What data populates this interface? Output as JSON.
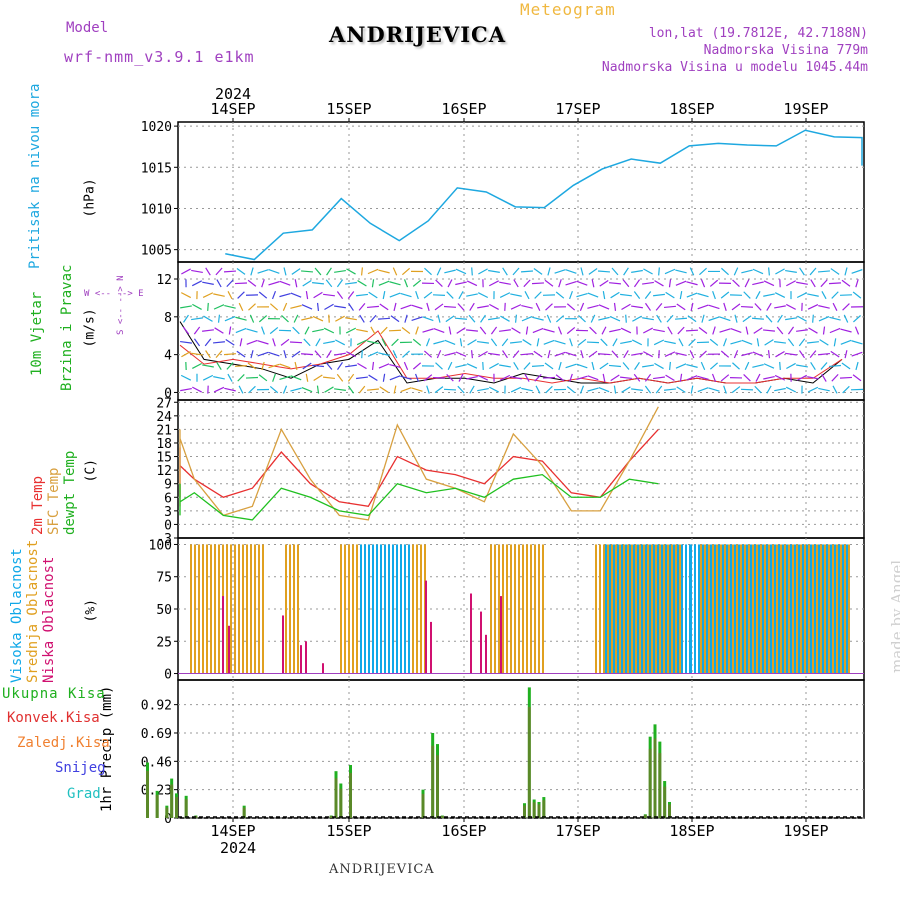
{
  "header": {
    "model_label": "Model",
    "model_run": "wrf-nmm_v3.9.1 e1km",
    "location": "ANDRIJEVICA",
    "product": "Meteogram",
    "lonlat": "lon,lat (19.7812E, 42.7188N)",
    "elevation": "Nadmorska Visina 779m",
    "model_elevation": "Nadmorska Visina u modelu 1045.44m"
  },
  "footer": {
    "location": "ANDRIJEVICA",
    "credit": "made by Angel"
  },
  "colors": {
    "pressure": "#1ea8e0",
    "wind_label": "#20b020",
    "temp2m": "#e83030",
    "sfc": "#d8a040",
    "dewpt": "#20c020",
    "high_cloud": "#10a8e8",
    "mid_cloud": "#e0a020",
    "low_cloud": "#d01070",
    "precip_total": "#20b020",
    "precip_conv": "#e03030",
    "precip_frozen": "#f08030",
    "snow": "#4040e0",
    "hail": "#20c0c0"
  },
  "axis": {
    "year": "2024",
    "days": [
      "14SEP",
      "15SEP",
      "16SEP",
      "17SEP",
      "18SEP",
      "19SEP"
    ]
  },
  "panels": {
    "pressure": {
      "label": "Pritisak na nivou mora",
      "unit": "(hPa)",
      "ticks": [
        "1005",
        "1010",
        "1015",
        "1020"
      ]
    },
    "wind": {
      "label1": "10m Vjetar",
      "label2": "Brzina i Pravac",
      "unit": "(m/s)",
      "compass_ns": "S <-- --> N",
      "compass_we": "W <-- --> E",
      "ticks": [
        "0",
        "4",
        "8",
        "12"
      ]
    },
    "temp": {
      "label1": "2m Temp",
      "label2": "SFC Temp",
      "label3": "dewpt Temp",
      "unit": "(C)",
      "ticks": [
        "-3",
        "0",
        "3",
        "6",
        "9",
        "12",
        "15",
        "18",
        "21",
        "24",
        "27"
      ]
    },
    "cloud": {
      "label1": "Visoka Oblacnost",
      "label2": "Srednja Oblacnost",
      "label3": "Niska Oblacnost",
      "unit": "(%)",
      "ticks": [
        "0",
        "25",
        "50",
        "75",
        "100"
      ]
    },
    "precip": {
      "unit_label": "1hr Precip (mm)",
      "ticks": [
        "0",
        "0.23",
        "0.46",
        "0.69",
        "0.92"
      ],
      "legend": [
        "Ukupna Kisa",
        "Konvek.Kisa",
        "Zaledj.Kisa",
        "Snijeg",
        "Grad"
      ]
    }
  },
  "chart_data": [
    {
      "type": "line",
      "title": "",
      "ylabel": "Pritisak na nivou mora (hPa)",
      "x": [
        "14SEP 00",
        "14SEP 06",
        "14SEP 12",
        "14SEP 18",
        "15SEP 00",
        "15SEP 06",
        "15SEP 12",
        "15SEP 18",
        "16SEP 00",
        "16SEP 06",
        "16SEP 12",
        "16SEP 18",
        "17SEP 00",
        "17SEP 06",
        "17SEP 12",
        "17SEP 18",
        "18SEP 00",
        "18SEP 06",
        "18SEP 12",
        "18SEP 18",
        "19SEP 00",
        "19SEP 06",
        "19SEP 12",
        "19SEP 18"
      ],
      "series": [
        {
          "values": [
            1004.5,
            1003.8,
            1007.0,
            1007.4,
            1011.2,
            1008.2,
            1006.1,
            1008.5,
            1012.5,
            1012.0,
            1010.2,
            1010.1,
            1012.8,
            1014.8,
            1016.0,
            1015.5,
            1017.6,
            1017.9,
            1017.7,
            1017.6,
            1019.5,
            1018.7,
            1018.6,
            1015.2
          ]
        }
      ],
      "ylim": [
        1003.5,
        1020.5
      ]
    },
    {
      "type": "line",
      "title": "",
      "ylabel": "10m Vjetar Brzina i Pravac (m/s)",
      "x": [
        "14SEP 00",
        "14SEP 06",
        "14SEP 12",
        "14SEP 18",
        "15SEP 00",
        "15SEP 06",
        "15SEP 12",
        "15SEP 18",
        "16SEP 00",
        "16SEP 06",
        "16SEP 12",
        "16SEP 18",
        "17SEP 00",
        "17SEP 06",
        "17SEP 12",
        "17SEP 18",
        "18SEP 00",
        "18SEP 06",
        "18SEP 12",
        "18SEP 18",
        "19SEP 00",
        "19SEP 06",
        "19SEP 12",
        "19SEP 18"
      ],
      "series": [
        {
          "values": [
            7.5,
            3.5,
            3.0,
            2.5,
            1.5,
            3.0,
            3.5,
            5.5,
            1.0,
            1.5,
            1.5,
            1.0,
            2.0,
            1.5,
            1.0,
            1.0,
            1.5,
            1.0,
            1.5,
            1.0,
            1.0,
            1.5,
            1.0,
            3.5
          ]
        },
        {
          "values": [
            5.0,
            3.0,
            3.5,
            3.0,
            2.5,
            3.0,
            4.0,
            6.5,
            1.5,
            1.5,
            2.0,
            1.5,
            1.5,
            1.0,
            1.5,
            1.0,
            1.5,
            1.0,
            1.5,
            1.0,
            1.0,
            1.5,
            1.5,
            3.5
          ]
        }
      ],
      "ylim": [
        0,
        13.5
      ]
    },
    {
      "type": "line",
      "title": "",
      "ylabel": "Temp (C)",
      "x": [
        "14SEP 00",
        "14SEP 06",
        "14SEP 12",
        "14SEP 18",
        "15SEP 00",
        "15SEP 06",
        "15SEP 12",
        "15SEP 18",
        "16SEP 00",
        "16SEP 06",
        "16SEP 12",
        "16SEP 18",
        "17SEP 00",
        "17SEP 06",
        "17SEP 12",
        "17SEP 18",
        "18SEP 00",
        "18SEP 06",
        "18SEP 12",
        "18SEP 18",
        "19SEP 00",
        "19SEP 06",
        "19SEP 12",
        "19SEP 18"
      ],
      "series": [
        {
          "values": [
            17,
            12,
            6,
            12,
            7,
            8,
            13,
            10,
            6,
            8,
            16,
            9,
            5,
            4,
            15,
            12,
            11,
            9,
            15,
            14,
            7,
            6,
            14,
            21
          ]
        },
        {
          "values": [
            21,
            10,
            5,
            20,
            6,
            4,
            19,
            10,
            2,
            4,
            21,
            10,
            2,
            1,
            22,
            10,
            8,
            5,
            20,
            13,
            3,
            3,
            14,
            26
          ]
        },
        {
          "values": [
            9,
            8,
            4,
            5,
            5,
            2,
            5,
            7,
            2,
            1,
            8,
            6,
            3,
            2,
            9,
            7,
            8,
            6,
            10,
            11,
            6,
            6,
            10,
            9
          ]
        }
      ],
      "ylim": [
        -3,
        27
      ]
    },
    {
      "type": "bar",
      "title": "",
      "ylabel": "Oblacnost (%)",
      "note": "dense hourly bars; values shown as 0-100% per hour",
      "ylim": [
        0,
        100
      ]
    },
    {
      "type": "bar",
      "title": "",
      "ylabel": "1hr Precip (mm)",
      "x": [
        "14SEP 06",
        "14SEP 08",
        "14SEP 10",
        "14SEP 11",
        "14SEP 12",
        "14SEP 14",
        "14SEP 16",
        "15SEP 02",
        "15SEP 20",
        "15SEP 21",
        "15SEP 22",
        "16SEP 00",
        "16SEP 15",
        "16SEP 17",
        "16SEP 18",
        "16SEP 19",
        "17SEP 12",
        "17SEP 13",
        "17SEP 14",
        "17SEP 15",
        "17SEP 16",
        "18SEP 13",
        "18SEP 14",
        "18SEP 15",
        "18SEP 16",
        "18SEP 17",
        "18SEP 18"
      ],
      "series": [
        {
          "values": [
            0.45,
            0.22,
            0.1,
            0.32,
            0.2,
            0.18,
            0.02,
            0.1,
            0.02,
            0.38,
            0.28,
            0.43,
            0.23,
            0.69,
            0.6,
            0.02,
            0.12,
            1.06,
            0.15,
            0.13,
            0.17,
            0.03,
            0.66,
            0.76,
            0.62,
            0.3,
            0.13
          ]
        }
      ],
      "ylim": [
        0,
        1.1
      ]
    }
  ]
}
